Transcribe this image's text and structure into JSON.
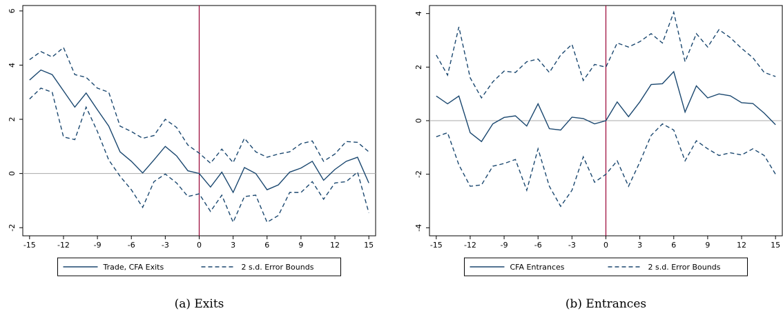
{
  "chart_data": [
    {
      "type": "line",
      "caption": "(a) Exits",
      "x": [
        -15,
        -14,
        -13,
        -12,
        -11,
        -10,
        -9,
        -8,
        -7,
        -6,
        -5,
        -4,
        -3,
        -2,
        -1,
        0,
        1,
        2,
        3,
        4,
        5,
        6,
        7,
        8,
        9,
        10,
        11,
        12,
        13,
        14,
        15
      ],
      "series": [
        {
          "name": "Trade, CFA Exits",
          "color": "#1a476f",
          "values": [
            3.45,
            3.82,
            3.65,
            3.05,
            2.45,
            2.97,
            2.35,
            1.75,
            0.8,
            0.45,
            0.02,
            0.5,
            1.0,
            0.65,
            0.1,
            0.0,
            -0.5,
            0.05,
            -0.7,
            0.22,
            0.0,
            -0.6,
            -0.42,
            0.05,
            0.2,
            0.45,
            -0.25,
            0.15,
            0.45,
            0.6,
            -0.35
          ]
        },
        {
          "name": "2 s.d. Error Bounds",
          "color": "#1a476f",
          "dashed": true,
          "upper": [
            4.2,
            4.5,
            4.3,
            4.65,
            3.65,
            3.55,
            3.15,
            3.0,
            1.75,
            1.55,
            1.3,
            1.4,
            2.0,
            1.7,
            1.05,
            0.75,
            0.38,
            0.9,
            0.4,
            1.3,
            0.8,
            0.6,
            0.72,
            0.8,
            1.1,
            1.2,
            0.45,
            0.72,
            1.18,
            1.15,
            0.8
          ],
          "lower": [
            2.75,
            3.15,
            3.0,
            1.35,
            1.25,
            2.45,
            1.55,
            0.5,
            -0.1,
            -0.6,
            -1.25,
            -0.3,
            -0.02,
            -0.35,
            -0.85,
            -0.75,
            -1.4,
            -0.8,
            -1.8,
            -0.85,
            -0.8,
            -1.8,
            -1.55,
            -0.7,
            -0.7,
            -0.3,
            -0.95,
            -0.35,
            -0.3,
            0.05,
            -1.45
          ]
        }
      ],
      "xlim": [
        -15.6,
        15.6
      ],
      "xticks": [
        -15,
        -12,
        -9,
        -6,
        -3,
        0,
        3,
        6,
        9,
        12,
        15
      ],
      "ylim": [
        -2.3,
        6.2
      ],
      "yticks": [
        -2,
        0,
        2,
        4,
        6
      ],
      "vline": 0,
      "vline_color": "#990033",
      "hline": 0,
      "hline_color": "#aaaaaa"
    },
    {
      "type": "line",
      "caption": "(b) Entrances",
      "x": [
        -15,
        -14,
        -13,
        -12,
        -11,
        -10,
        -9,
        -8,
        -7,
        -6,
        -5,
        -4,
        -3,
        -2,
        -1,
        0,
        1,
        2,
        3,
        4,
        5,
        6,
        7,
        8,
        9,
        10,
        11,
        12,
        13,
        14,
        15
      ],
      "series": [
        {
          "name": "CFA Entrances",
          "color": "#1a476f",
          "values": [
            0.92,
            0.63,
            0.92,
            -0.45,
            -0.78,
            -0.12,
            0.12,
            0.18,
            -0.2,
            0.63,
            -0.3,
            -0.35,
            0.13,
            0.08,
            -0.12,
            0.0,
            0.7,
            0.15,
            0.7,
            1.35,
            1.38,
            1.83,
            0.32,
            1.3,
            0.85,
            1.0,
            0.93,
            0.67,
            0.64,
            0.28,
            -0.15
          ]
        },
        {
          "name": "2 s.d. Error Bounds",
          "color": "#1a476f",
          "dashed": true,
          "upper": [
            2.45,
            1.7,
            3.5,
            1.6,
            0.85,
            1.45,
            1.85,
            1.8,
            2.2,
            2.3,
            1.8,
            2.45,
            2.85,
            1.5,
            2.1,
            2.0,
            2.9,
            2.75,
            2.95,
            3.25,
            2.9,
            4.05,
            2.2,
            3.25,
            2.75,
            3.4,
            3.1,
            2.7,
            2.35,
            1.8,
            1.65
          ],
          "lower": [
            -0.6,
            -0.45,
            -1.65,
            -2.45,
            -2.4,
            -1.7,
            -1.6,
            -1.45,
            -2.6,
            -1.05,
            -2.45,
            -3.2,
            -2.6,
            -1.35,
            -2.3,
            -2.0,
            -1.5,
            -2.45,
            -1.55,
            -0.55,
            -0.12,
            -0.35,
            -1.5,
            -0.75,
            -1.05,
            -1.3,
            -1.2,
            -1.28,
            -1.05,
            -1.3,
            -2.0
          ]
        }
      ],
      "xlim": [
        -15.6,
        15.6
      ],
      "xticks": [
        -15,
        -12,
        -9,
        -6,
        -3,
        0,
        3,
        6,
        9,
        12,
        15
      ],
      "ylim": [
        -4.3,
        4.3
      ],
      "yticks": [
        -4,
        -2,
        0,
        2,
        4
      ],
      "vline": 0,
      "vline_color": "#990033",
      "hline": 0,
      "hline_color": "#aaaaaa"
    }
  ]
}
